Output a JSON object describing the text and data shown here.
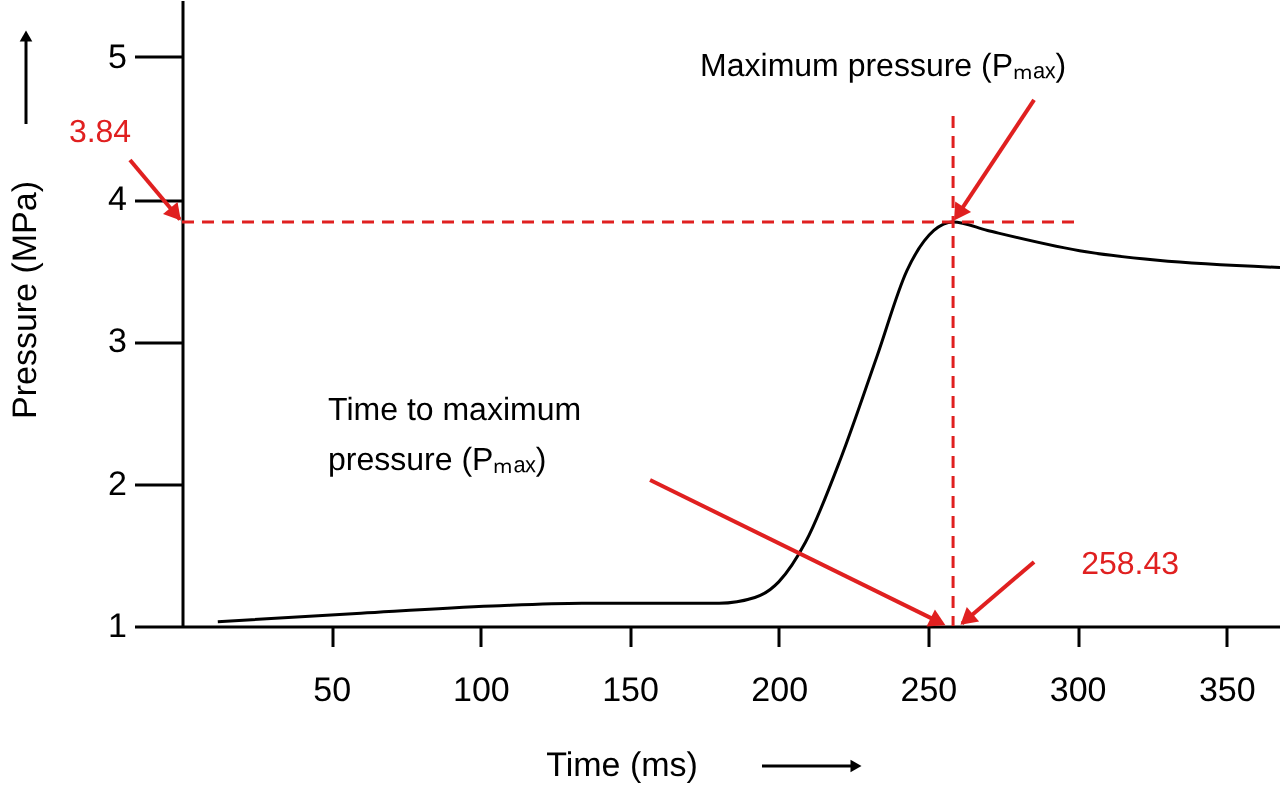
{
  "chart_data": {
    "type": "line",
    "xlabel": "Time (ms)",
    "ylabel": "Pressure (MPa)",
    "series": [
      {
        "color": "#000000",
        "x": [
          12,
          60,
          104,
          134,
          180,
          192,
          200,
          209,
          221,
          233,
          243,
          252,
          258.43,
          270,
          303,
          327,
          368
        ],
        "values": [
          1.03,
          1.09,
          1.14,
          1.16,
          1.16,
          1.2,
          1.31,
          1.59,
          2.19,
          2.9,
          3.5,
          3.78,
          3.84,
          3.78,
          3.63,
          3.57,
          3.52
        ]
      }
    ],
    "xlim": [
      0,
      368
    ],
    "xticks": [
      50,
      100,
      150,
      200,
      250,
      300,
      350
    ],
    "ylim": [
      1,
      5.4
    ],
    "yticks": [
      1,
      2,
      3,
      4,
      5
    ],
    "grid": false,
    "marker": "none",
    "line_style": "solid",
    "ref_lines": [
      {
        "axis": "y",
        "value": 3.84,
        "color": "#e02020",
        "line_style": "dashed"
      },
      {
        "axis": "x",
        "value": 258.43,
        "color": "#e02020",
        "line_style": "dashed"
      }
    ],
    "annotations": [
      "3.84",
      {
        "text": "Maximum pressure (Pₘₐₓ)",
        "x": 258.43,
        "y": 3.84
      },
      "Time to maximum pressure (Pₘₐₓ)",
      "258.43"
    ]
  }
}
